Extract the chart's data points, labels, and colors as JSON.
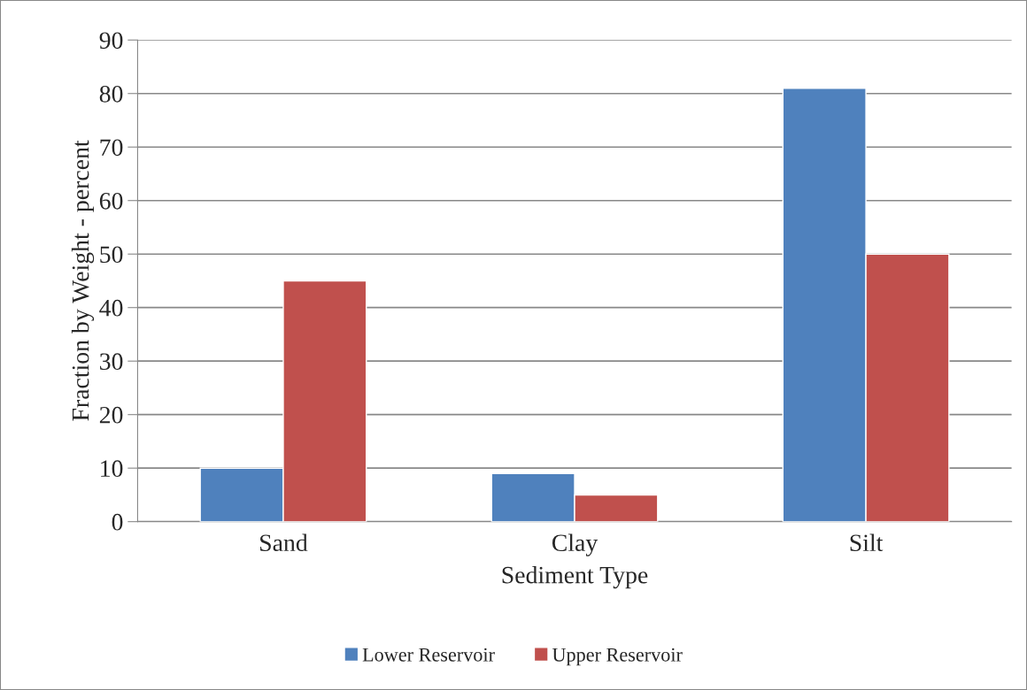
{
  "chart_data": {
    "type": "bar",
    "xlabel": "Sediment Type",
    "ylabel": "Fraction by Weight - percent",
    "categories": [
      "Sand",
      "Clay",
      "Silt"
    ],
    "series": [
      {
        "name": "Lower Reservoir",
        "color": "#4f81bd",
        "values": [
          10,
          9,
          81
        ]
      },
      {
        "name": "Upper Reservoir",
        "color": "#c0504d",
        "values": [
          45,
          5,
          50
        ]
      }
    ],
    "ylim": [
      0,
      90
    ],
    "yticks": [
      0,
      10,
      20,
      30,
      40,
      50,
      60,
      70,
      80,
      90
    ],
    "grid": "y",
    "legend": "bottom"
  }
}
